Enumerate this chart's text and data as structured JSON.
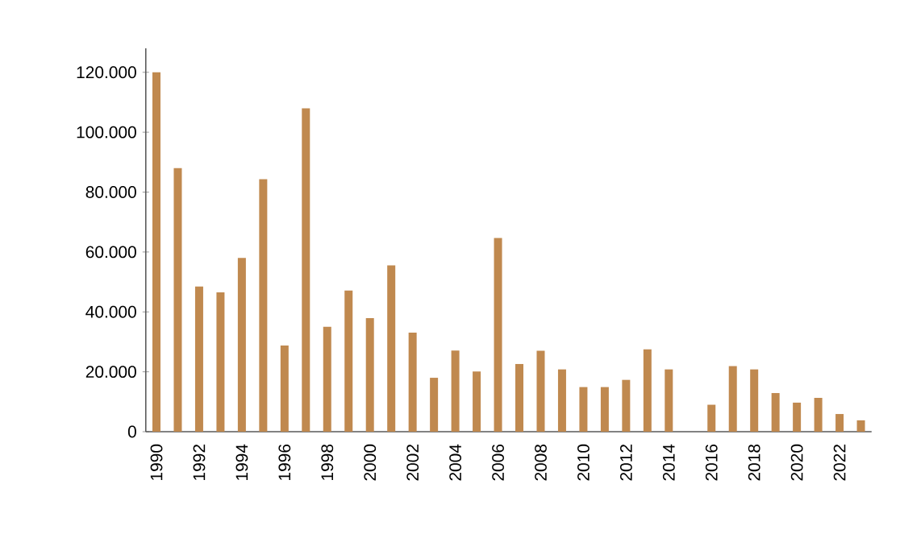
{
  "chart_data": {
    "type": "bar",
    "categories": [
      "1990",
      null,
      "1992",
      null,
      "1994",
      null,
      "1996",
      null,
      "1998",
      null,
      "2000",
      null,
      "2002",
      null,
      "2004",
      null,
      "2006",
      null,
      "2008",
      null,
      "2010",
      null,
      "2012",
      null,
      "2014",
      null,
      "2016",
      null,
      "2018",
      null,
      "2020",
      null,
      "2022",
      null
    ],
    "values": [
      120000,
      88000,
      48500,
      46500,
      58000,
      84300,
      28800,
      108000,
      35000,
      47100,
      37900,
      55500,
      33100,
      18000,
      27100,
      20100,
      64700,
      22600,
      27000,
      20800,
      14900,
      14900,
      17300,
      27500,
      20800,
      0,
      9000,
      21900,
      20800,
      12900,
      9700,
      11300,
      5900,
      3800
    ],
    "color": "#c0894f",
    "ylim": [
      0,
      128000
    ],
    "yticks": [
      {
        "value": 0,
        "label": "0"
      },
      {
        "value": 20000,
        "label": "20.000"
      },
      {
        "value": 40000,
        "label": "40.000"
      },
      {
        "value": 60000,
        "label": "60.000"
      },
      {
        "value": 80000,
        "label": "80.000"
      },
      {
        "value": 100000,
        "label": "100.000"
      },
      {
        "value": 120000,
        "label": "120.000"
      }
    ],
    "grid": false
  }
}
